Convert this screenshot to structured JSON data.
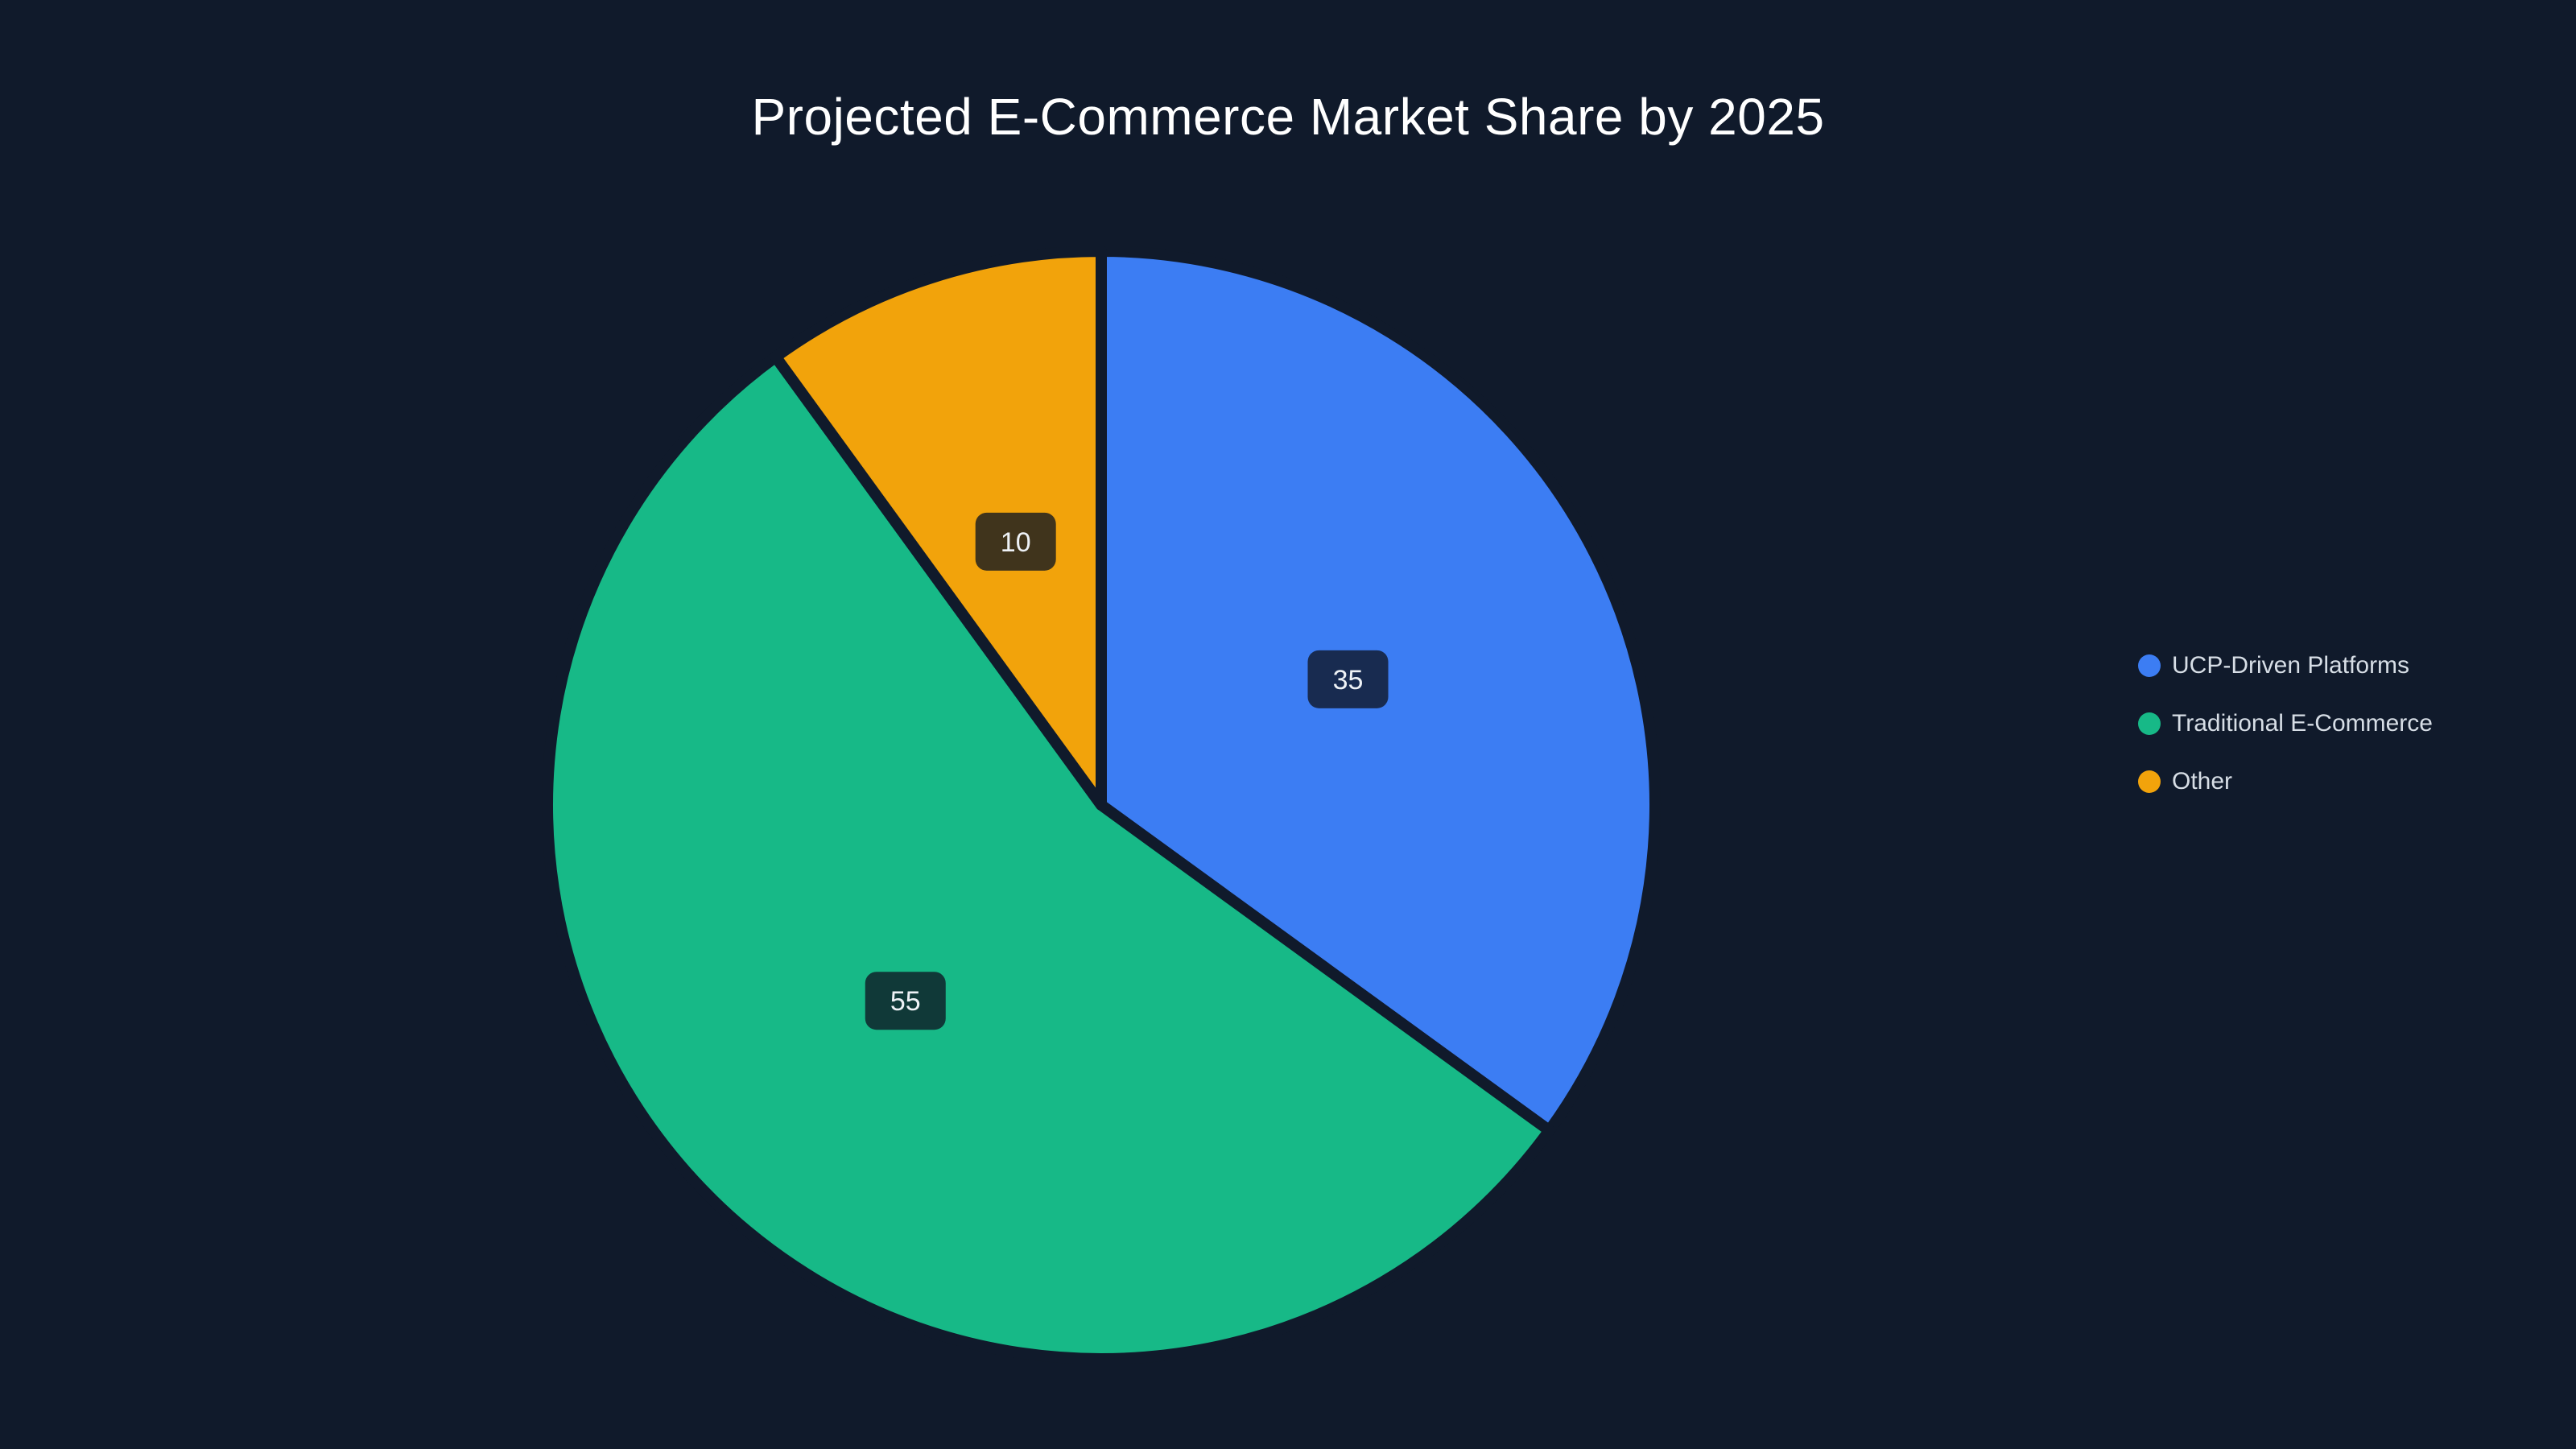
{
  "title": "Projected E-Commerce Market Share by 2025",
  "chart_data": {
    "type": "pie",
    "title": "Projected E-Commerce Market Share by 2025",
    "categories": [
      "UCP-Driven Platforms",
      "Traditional E-Commerce",
      "Other"
    ],
    "values": [
      35,
      55,
      10
    ],
    "data_labels": [
      "35",
      "55",
      "10"
    ],
    "colors": [
      "#3c7df3",
      "#17b987",
      "#f2a30b"
    ],
    "start_angle_deg": -90,
    "direction": "clockwise",
    "legend_position": "right",
    "grid": false
  },
  "legend": {
    "items": [
      {
        "label": "UCP-Driven Platforms",
        "color": "#3c7df3"
      },
      {
        "label": "Traditional E-Commerce",
        "color": "#17b987"
      },
      {
        "label": "Other",
        "color": "#f2a30b"
      }
    ]
  },
  "colors": {
    "background": "#101a2b",
    "title_text": "#ffffff",
    "legend_text": "#d7dee6",
    "slice_border": "#101a2b",
    "label_box_fill": "rgba(14,20,33,0.78)",
    "label_text": "#eef2f6"
  }
}
